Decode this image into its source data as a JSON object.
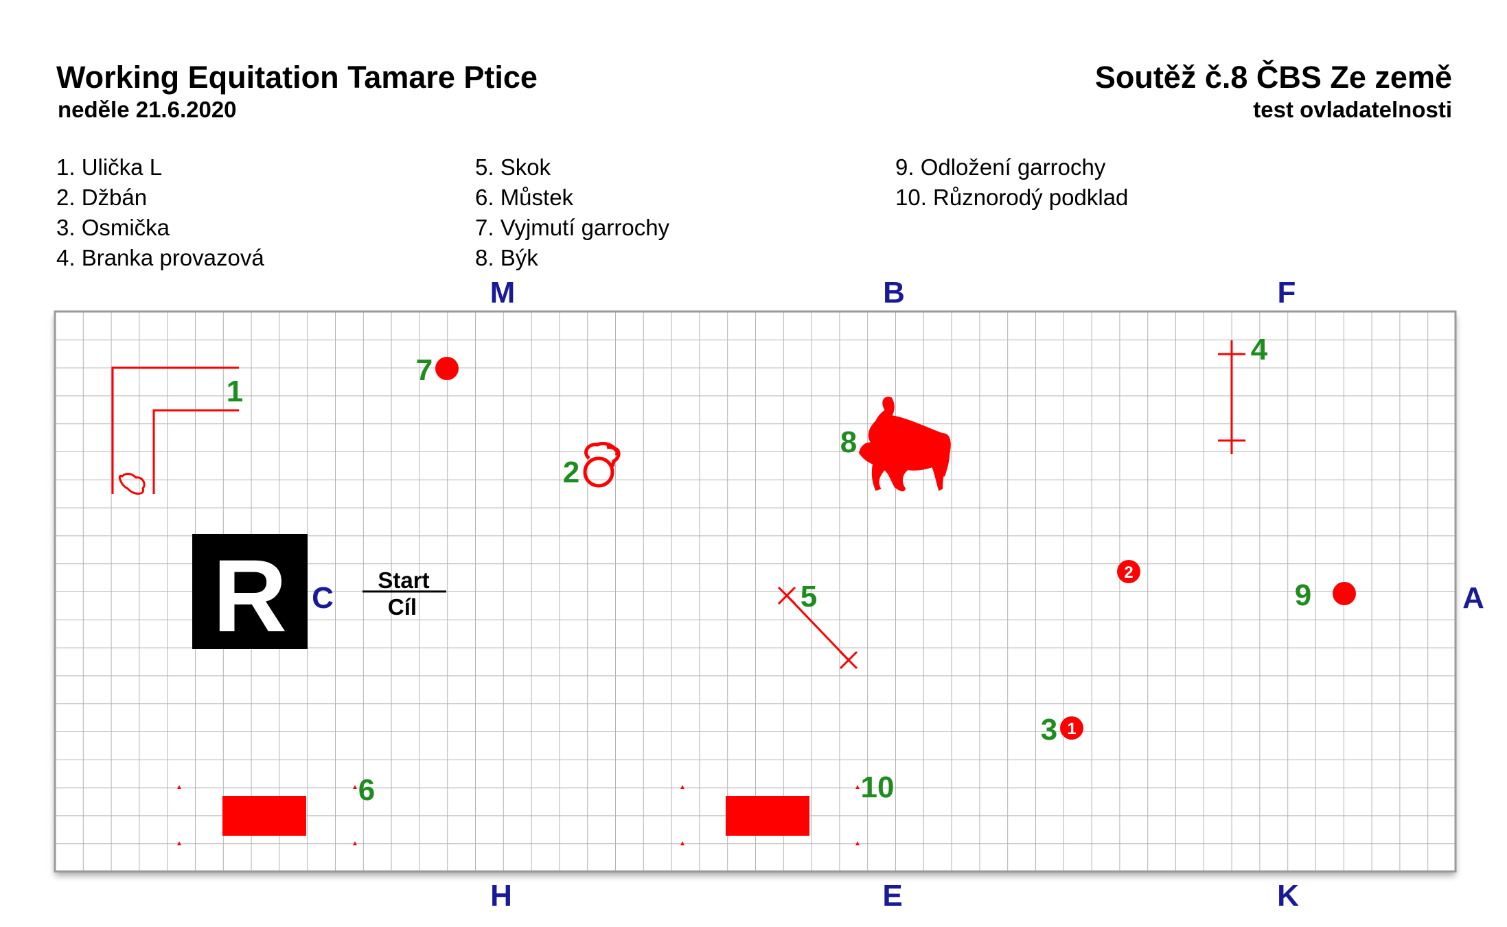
{
  "header": {
    "event_title": "Working Equitation Tamare Ptice",
    "event_date": "neděle 21.6.2020",
    "competition_title": "Soutěž č.8 ČBS Ze země",
    "competition_subtitle": "test ovladatelnosti"
  },
  "legend": {
    "columns": [
      [
        "1. Ulička L",
        "2. Džbán",
        "3. Osmička",
        "4. Branka provazová"
      ],
      [
        "5. Skok",
        "6. Můstek",
        "7. Vyjmutí garrochy",
        "8. Býk"
      ],
      [
        "9. Odložení garrochy",
        "10. Různorodý podklad"
      ]
    ]
  },
  "arena": {
    "letters": {
      "M": "M",
      "B": "B",
      "F": "F",
      "C": "C",
      "A": "A",
      "H": "H",
      "E": "E",
      "K": "K"
    },
    "judge_box": "R",
    "start_label": "Start",
    "finish_label": "Cíl",
    "obstacles": {
      "n1": "1",
      "n2": "2",
      "n3": "3",
      "n4": "4",
      "n5": "5",
      "n6": "6",
      "n7": "7",
      "n8": "8",
      "n9": "9",
      "n10": "10",
      "marker1": "1",
      "marker2": "2"
    }
  },
  "colors": {
    "obstacle": "#ff0000",
    "number": "#1e8c1e",
    "letter": "#1a1a99",
    "grid": "#b3b3b3"
  }
}
